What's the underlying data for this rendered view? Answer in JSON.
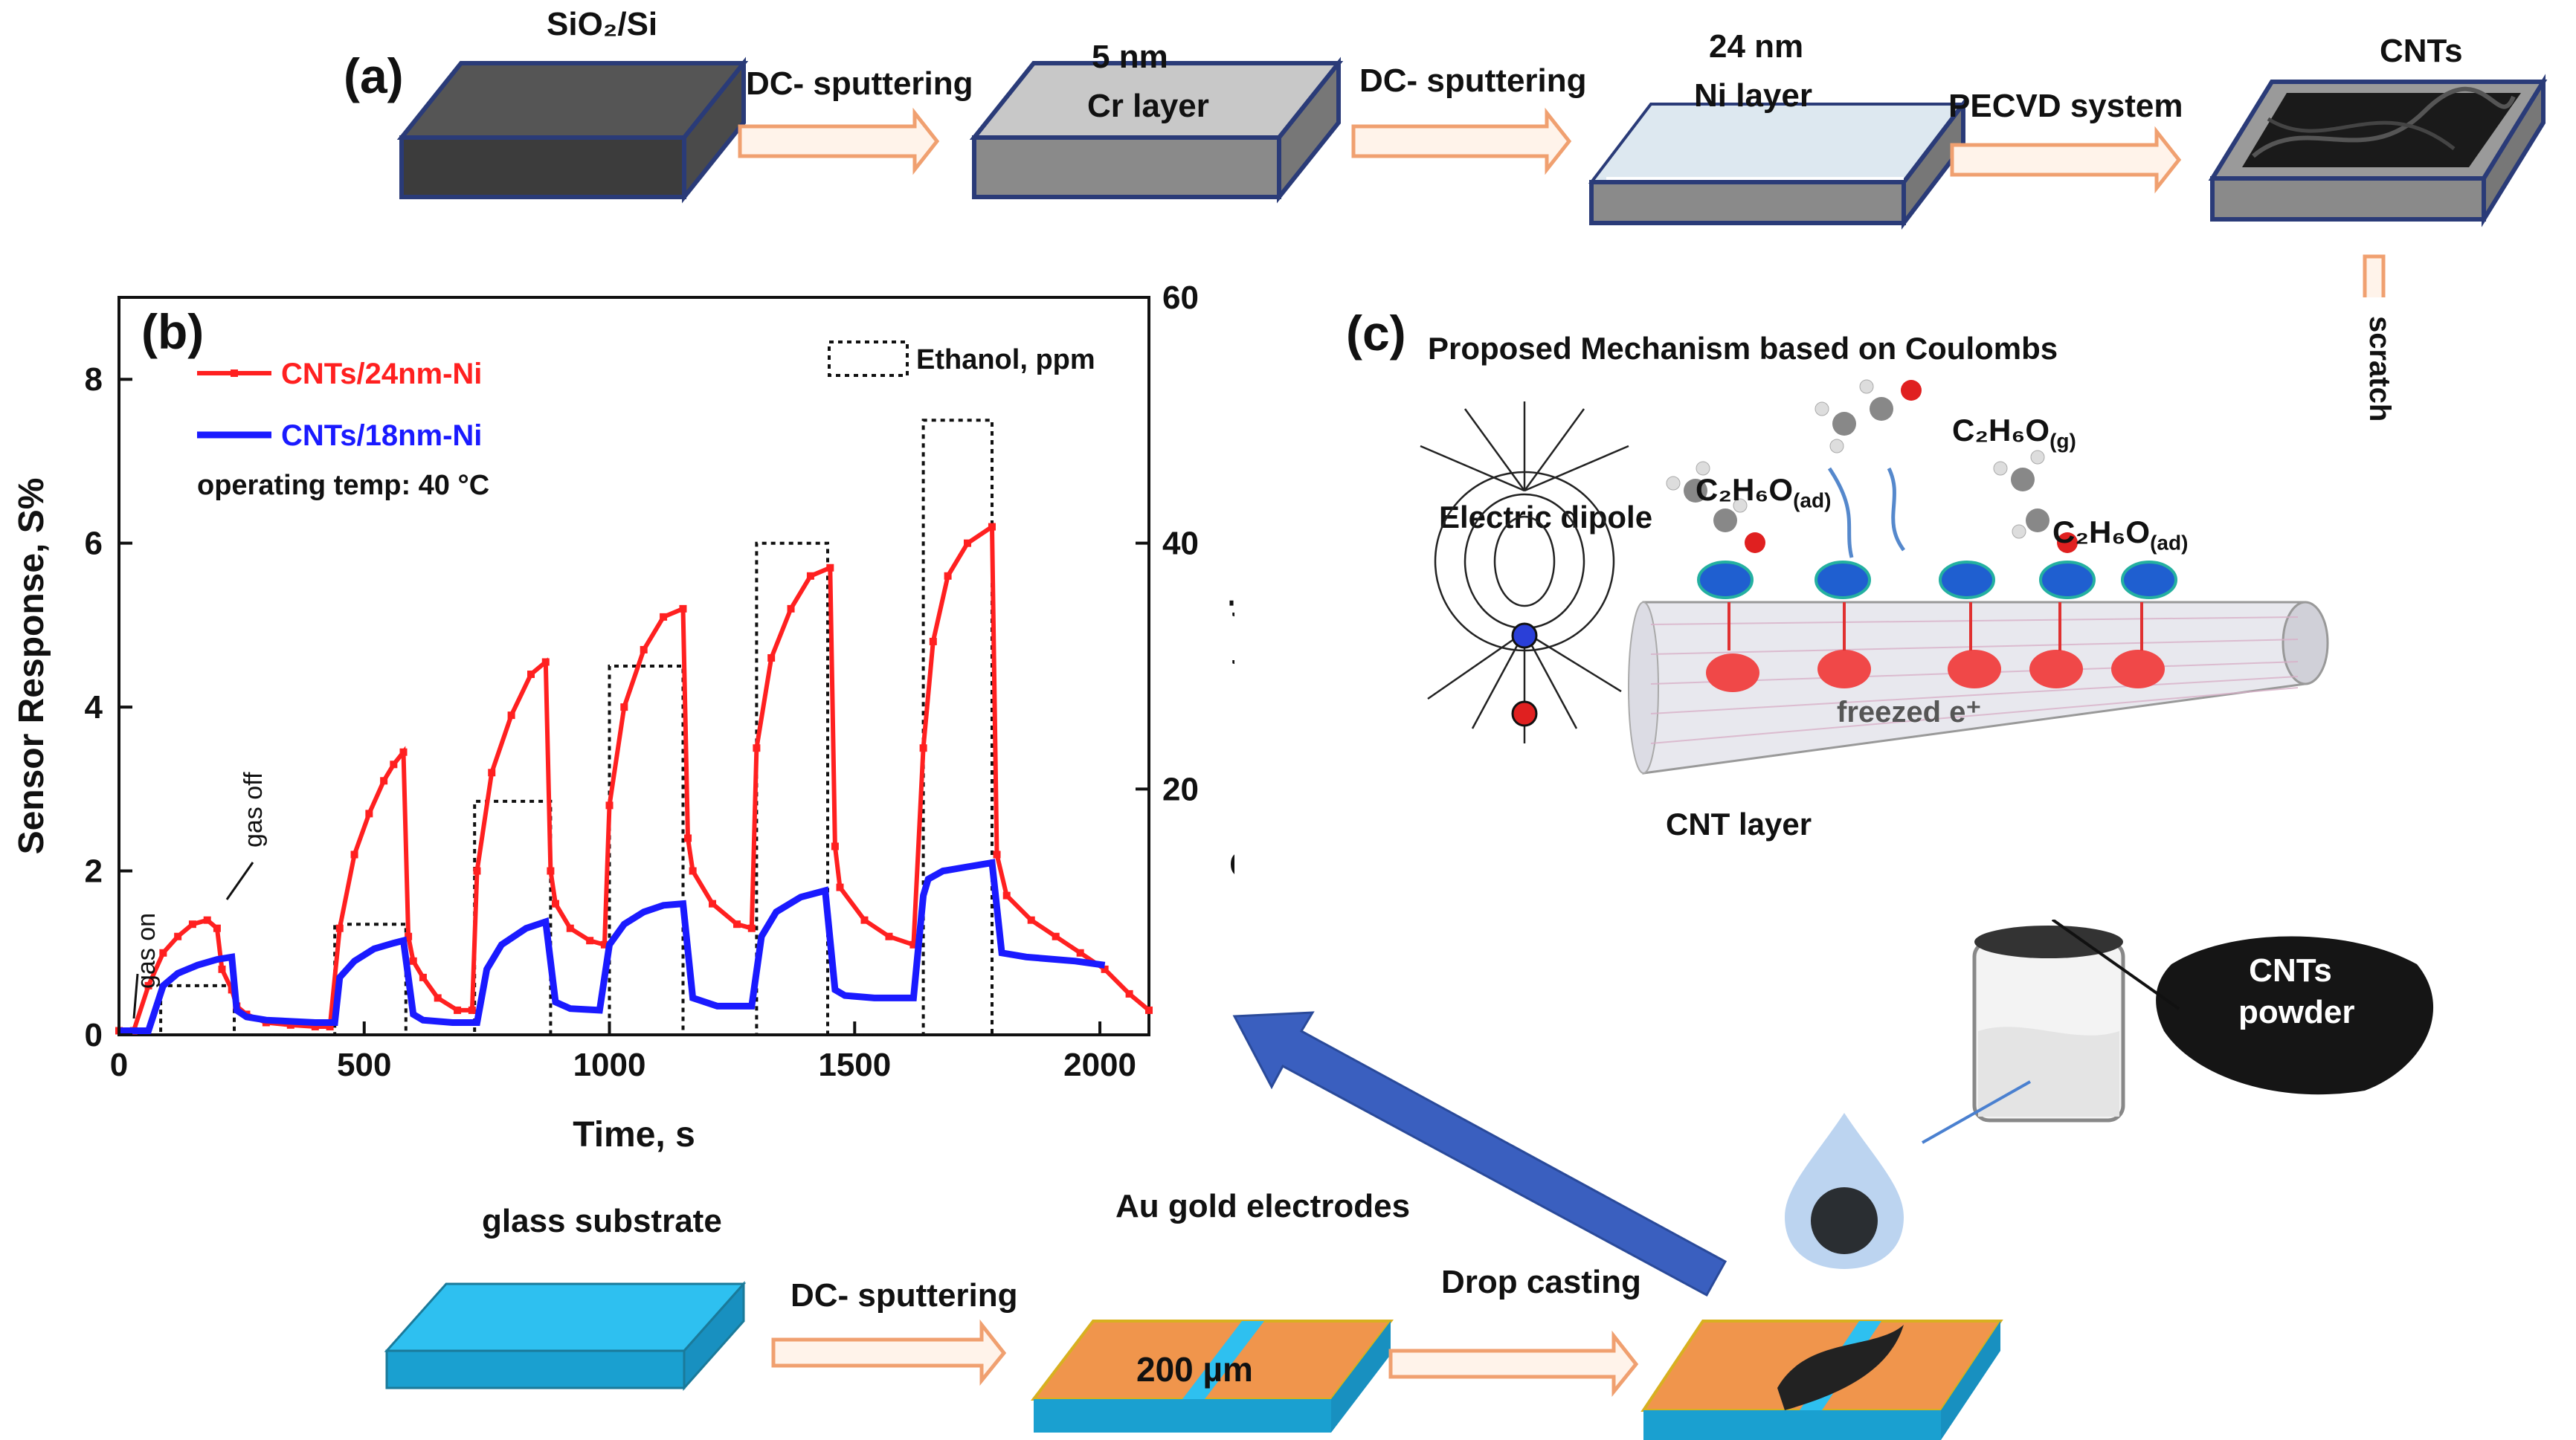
{
  "panel_a": {
    "label": "(a)",
    "substrate": "SiO₂/Si",
    "step1": "DC- sputtering",
    "cr_thickness": "5 nm",
    "cr_layer": "Cr layer",
    "step2": "DC- sputtering",
    "ni_thickness": "24 nm",
    "ni_layer": "Ni  layer",
    "step3": "PECVD system",
    "product": "CNTs",
    "scratch": "scratch"
  },
  "panel_b": {
    "label": "(b)",
    "operating_temp": "operating temp: 40 °C",
    "gas_on": "gas on",
    "gas_off": "gas off"
  },
  "panel_c": {
    "label": "(c)",
    "title": "Proposed Mechanism based on Coulombs",
    "electric_dipole": "Electric dipole",
    "molecule_gas": "C₂H₆O",
    "molecule_gas_sub": "(g)",
    "molecule_ad": "C₂H₆O",
    "molecule_ad_sub": "(ad)",
    "freezed": "freezed e⁺",
    "cnt_layer": "CNT layer",
    "dipole_minus": "−",
    "dipole_plus": "+"
  },
  "bottom": {
    "glass": "glass substrate",
    "sputter": "DC- sputtering",
    "electrodes": "Au gold electrodes",
    "gap": "200 µm",
    "drop": "Drop casting",
    "powder": "CNTs powder"
  },
  "colors": {
    "red": "#ff2020",
    "blue": "#1a1aff",
    "arrow": "#3a5fbf",
    "orange_arrow": "#f0a070",
    "cyan": "#2ec0f0",
    "gold": "#f0954c"
  },
  "chart_data": {
    "type": "line",
    "title": "",
    "xlabel": "Time, s",
    "ylabel": "Sensor Response, S%",
    "y2label": "Gas concentration, ppm",
    "xlim": [
      0,
      2100
    ],
    "ylim": [
      0,
      9
    ],
    "y2lim": [
      0,
      60
    ],
    "xticks": [
      0,
      500,
      1000,
      1500,
      2000
    ],
    "yticks": [
      0,
      2,
      4,
      6,
      8
    ],
    "y2ticks": [
      20,
      40,
      60
    ],
    "legend_concentration": "Ethanol, ppm",
    "series": [
      {
        "name": "CNTs/24nm-Ni",
        "color": "#ff2020",
        "x": [
          0,
          30,
          60,
          90,
          120,
          150,
          180,
          200,
          210,
          230,
          240,
          260,
          300,
          350,
          400,
          430,
          450,
          480,
          510,
          540,
          560,
          580,
          590,
          600,
          620,
          650,
          690,
          720,
          730,
          760,
          800,
          840,
          870,
          880,
          890,
          920,
          960,
          990,
          1000,
          1030,
          1070,
          1110,
          1150,
          1160,
          1170,
          1210,
          1260,
          1290,
          1300,
          1330,
          1370,
          1410,
          1450,
          1460,
          1470,
          1520,
          1570,
          1620,
          1640,
          1660,
          1690,
          1730,
          1780,
          1790,
          1810,
          1860,
          1910,
          1960,
          2010,
          2060,
          2100
        ],
        "y": [
          0.05,
          0.05,
          0.6,
          1.0,
          1.2,
          1.35,
          1.4,
          1.3,
          0.8,
          0.55,
          0.35,
          0.25,
          0.15,
          0.12,
          0.1,
          0.1,
          1.3,
          2.2,
          2.7,
          3.1,
          3.3,
          3.45,
          1.2,
          0.9,
          0.7,
          0.45,
          0.3,
          0.3,
          2.0,
          3.2,
          3.9,
          4.4,
          4.55,
          2.0,
          1.6,
          1.3,
          1.15,
          1.1,
          2.8,
          4.0,
          4.7,
          5.1,
          5.2,
          2.4,
          2.0,
          1.6,
          1.35,
          1.3,
          3.5,
          4.6,
          5.2,
          5.6,
          5.7,
          2.3,
          1.8,
          1.4,
          1.2,
          1.1,
          3.5,
          4.8,
          5.6,
          6.0,
          6.2,
          2.2,
          1.7,
          1.4,
          1.2,
          1.0,
          0.8,
          0.5,
          0.3
        ]
      },
      {
        "name": "CNTs/18nm-Ni",
        "color": "#1a1aff",
        "x": [
          0,
          60,
          90,
          120,
          160,
          200,
          230,
          240,
          260,
          300,
          400,
          440,
          450,
          480,
          520,
          560,
          580,
          600,
          620,
          680,
          730,
          750,
          780,
          830,
          870,
          890,
          920,
          980,
          1000,
          1030,
          1070,
          1110,
          1150,
          1170,
          1220,
          1290,
          1310,
          1340,
          1390,
          1440,
          1460,
          1480,
          1540,
          1620,
          1640,
          1650,
          1680,
          1730,
          1780,
          1800,
          1850,
          1950,
          2010
        ],
        "y": [
          0.05,
          0.05,
          0.6,
          0.75,
          0.85,
          0.92,
          0.95,
          0.3,
          0.22,
          0.18,
          0.15,
          0.15,
          0.7,
          0.9,
          1.05,
          1.12,
          1.15,
          0.25,
          0.18,
          0.15,
          0.15,
          0.8,
          1.1,
          1.3,
          1.38,
          0.4,
          0.32,
          0.3,
          1.1,
          1.35,
          1.5,
          1.58,
          1.6,
          0.45,
          0.35,
          0.35,
          1.2,
          1.5,
          1.68,
          1.76,
          0.55,
          0.48,
          0.45,
          0.45,
          1.7,
          1.9,
          2.0,
          2.05,
          2.1,
          1.0,
          0.95,
          0.9,
          0.85
        ]
      },
      {
        "name": "Ethanol, ppm",
        "axis": "y2",
        "x": [
          0,
          85,
          85,
          235,
          235,
          440,
          440,
          585,
          585,
          725,
          725,
          880,
          880,
          1000,
          1000,
          1150,
          1150,
          1300,
          1300,
          1445,
          1445,
          1640,
          1640,
          1780,
          1780,
          2100
        ],
        "y": [
          0,
          0,
          4,
          4,
          0,
          0,
          9,
          9,
          0,
          0,
          19,
          19,
          0,
          0,
          30,
          30,
          0,
          0,
          40,
          40,
          0,
          0,
          50,
          50,
          0,
          0
        ]
      }
    ]
  }
}
